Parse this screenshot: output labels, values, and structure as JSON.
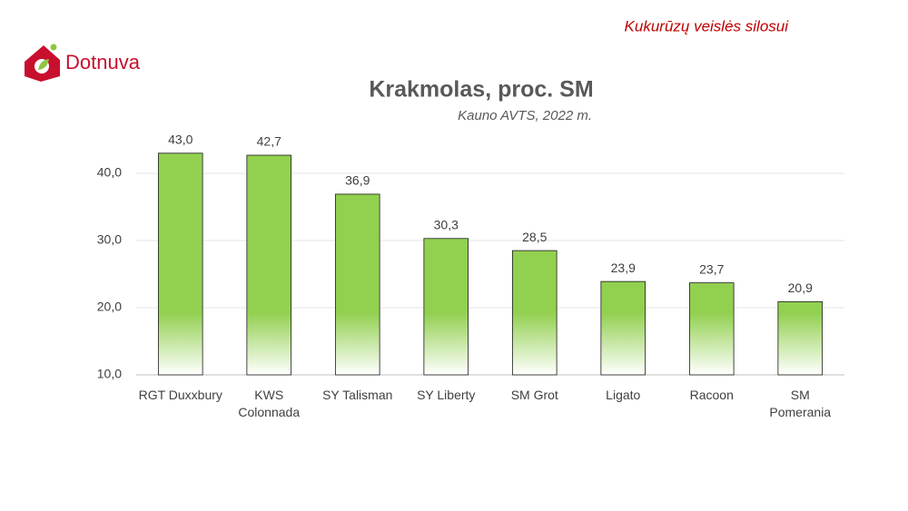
{
  "header": {
    "tagline": "Kukurūzų veislės silosui",
    "logo": "Dotnuva"
  },
  "chart_data": {
    "type": "bar",
    "title": "Krakmolas, proc. SM",
    "subtitle": "Kauno AVTS, 2022 m.",
    "categories": [
      "RGT Duxxbury",
      "KWS\nColonnada",
      "SY Talisman",
      "SY Liberty",
      "SM Grot",
      "Ligato",
      "Racoon",
      "SM\nPomerania"
    ],
    "values": [
      43.0,
      42.7,
      36.9,
      30.3,
      28.5,
      23.9,
      23.7,
      20.9
    ],
    "value_labels": [
      "43,0",
      "42,7",
      "36,9",
      "30,3",
      "28,5",
      "23,9",
      "23,7",
      "20,9"
    ],
    "color": "#92d050",
    "ylim": [
      10,
      45
    ],
    "yticks": [
      {
        "value": 10,
        "label": "10,0"
      },
      {
        "value": 20,
        "label": "20,0"
      },
      {
        "value": 30,
        "label": "30,0"
      },
      {
        "value": 40,
        "label": "40,0"
      }
    ],
    "grid": true
  }
}
